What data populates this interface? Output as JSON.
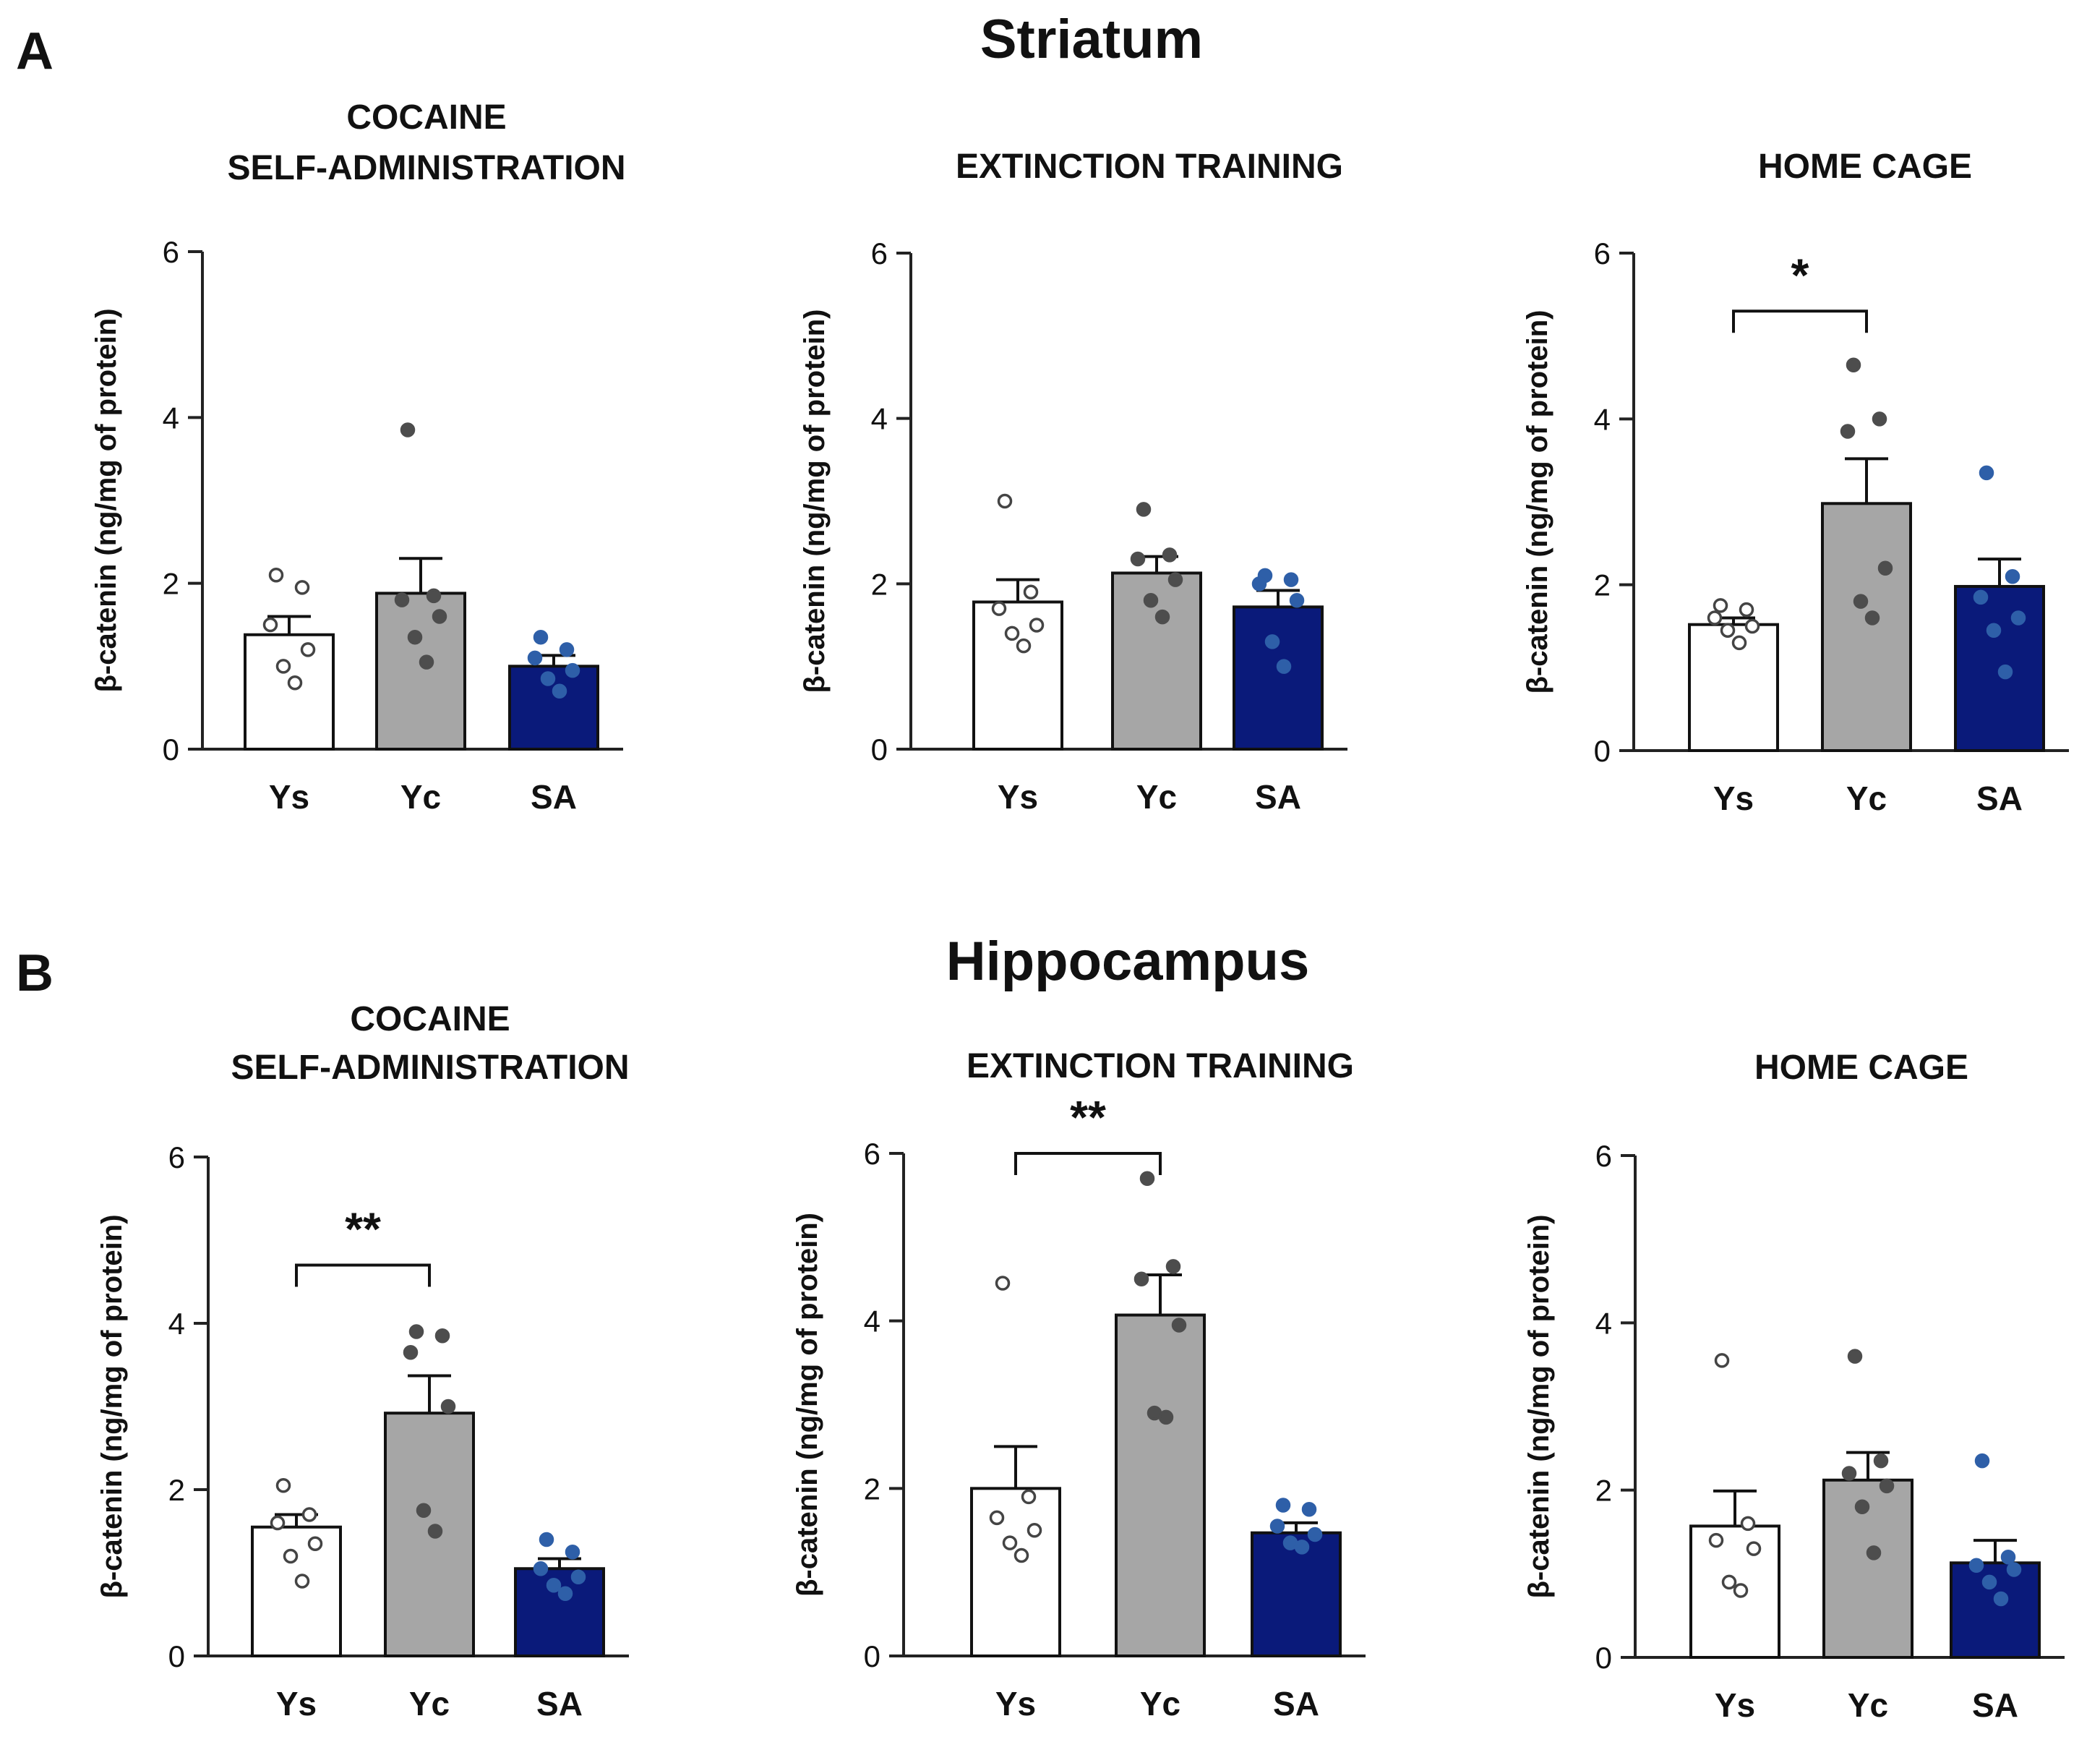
{
  "figure": {
    "panel_A": {
      "letter": "A",
      "title": "Striatum"
    },
    "panel_B": {
      "letter": "B",
      "title": "Hippocampus"
    }
  },
  "colors": {
    "Ys": "#ffffff",
    "Yc": "#a6a6a6",
    "SA": "#0a1a7a",
    "SA_dot": "#2e5fa8",
    "axis": "#222222"
  },
  "chart_data": [
    {
      "type": "bar",
      "panel": "A",
      "region": "Striatum",
      "title_lines": [
        "COCAINE",
        "SELF-ADMINISTRATION"
      ],
      "ylabel": "β-catenin (ng/mg of protein)",
      "ylim": [
        0,
        6
      ],
      "yticks": [
        "0",
        "2",
        "4",
        "6"
      ],
      "categories": [
        "Ys",
        "Yc",
        "SA"
      ],
      "values": [
        1.38,
        1.88,
        1.0
      ],
      "sem": [
        0.22,
        0.42,
        0.13
      ],
      "points": [
        [
          2.1,
          1.95,
          1.5,
          1.2,
          1.0,
          0.8
        ],
        [
          3.85,
          1.85,
          1.8,
          1.6,
          1.35,
          1.05
        ],
        [
          1.35,
          1.2,
          1.1,
          0.95,
          0.85,
          0.7
        ]
      ],
      "significance": null
    },
    {
      "type": "bar",
      "panel": "A",
      "region": "Striatum",
      "title_lines": [
        "EXTINCTION TRAINING"
      ],
      "ylabel": "β-catenin (ng/mg of protein)",
      "ylim": [
        0,
        6
      ],
      "yticks": [
        "0",
        "2",
        "4",
        "6"
      ],
      "categories": [
        "Ys",
        "Yc",
        "SA"
      ],
      "values": [
        1.78,
        2.13,
        1.72
      ],
      "sem": [
        0.27,
        0.2,
        0.2
      ],
      "points": [
        [
          3.0,
          1.9,
          1.7,
          1.5,
          1.4,
          1.25
        ],
        [
          2.9,
          2.35,
          2.3,
          2.05,
          1.8,
          1.6
        ],
        [
          2.1,
          2.05,
          2.0,
          1.8,
          1.3,
          1.0
        ]
      ],
      "significance": null
    },
    {
      "type": "bar",
      "panel": "A",
      "region": "Striatum",
      "title_lines": [
        "HOME CAGE"
      ],
      "ylabel": "β-catenin (ng/mg of protein)",
      "ylim": [
        0,
        6
      ],
      "yticks": [
        "0",
        "2",
        "4",
        "6"
      ],
      "categories": [
        "Ys",
        "Yc",
        "SA"
      ],
      "values": [
        1.52,
        2.98,
        1.98
      ],
      "sem": [
        0.08,
        0.54,
        0.33
      ],
      "points": [
        [
          1.75,
          1.7,
          1.6,
          1.5,
          1.45,
          1.3
        ],
        [
          4.65,
          4.0,
          3.85,
          2.2,
          1.8,
          1.6
        ],
        [
          3.35,
          2.1,
          1.85,
          1.6,
          1.45,
          0.95
        ]
      ],
      "significance": {
        "label": "*",
        "from": 0,
        "to": 1,
        "at": 5.3
      }
    },
    {
      "type": "bar",
      "panel": "B",
      "region": "Hippocampus",
      "title_lines": [
        "COCAINE",
        "SELF-ADMINISTRATION"
      ],
      "ylabel": "β-catenin (ng/mg of protein)",
      "ylim": [
        0,
        6
      ],
      "yticks": [
        "0",
        "2",
        "4",
        "6"
      ],
      "categories": [
        "Ys",
        "Yc",
        "SA"
      ],
      "values": [
        1.55,
        2.92,
        1.05
      ],
      "sem": [
        0.15,
        0.45,
        0.12
      ],
      "points": [
        [
          2.05,
          1.7,
          1.6,
          1.35,
          1.2,
          0.9
        ],
        [
          3.9,
          3.85,
          3.65,
          3.0,
          1.75,
          1.5
        ],
        [
          1.4,
          1.25,
          1.05,
          0.95,
          0.85,
          0.75
        ]
      ],
      "significance": {
        "label": "**",
        "from": 0,
        "to": 1,
        "at": 4.7
      }
    },
    {
      "type": "bar",
      "panel": "B",
      "region": "Hippocampus",
      "title_lines": [
        "EXTINCTION TRAINING"
      ],
      "ylabel": "β-catenin (ng/mg of protein)",
      "ylim": [
        0,
        6
      ],
      "yticks": [
        "0",
        "2",
        "4",
        "6"
      ],
      "categories": [
        "Ys",
        "Yc",
        "SA"
      ],
      "values": [
        2.0,
        4.07,
        1.47
      ],
      "sem": [
        0.5,
        0.48,
        0.12
      ],
      "points": [
        [
          4.45,
          1.9,
          1.65,
          1.5,
          1.35,
          1.2
        ],
        [
          5.7,
          4.65,
          4.5,
          3.95,
          2.9,
          2.85
        ],
        [
          1.8,
          1.75,
          1.55,
          1.45,
          1.35,
          1.3
        ]
      ],
      "significance": {
        "label": "**",
        "from": 0,
        "to": 1,
        "at": 6.0
      }
    },
    {
      "type": "bar",
      "panel": "B",
      "region": "Hippocampus",
      "title_lines": [
        "HOME CAGE"
      ],
      "ylabel": "β-catenin (ng/mg of protein)",
      "ylim": [
        0,
        6
      ],
      "yticks": [
        "0",
        "2",
        "4",
        "6"
      ],
      "categories": [
        "Ys",
        "Yc",
        "SA"
      ],
      "values": [
        1.57,
        2.12,
        1.13
      ],
      "sem": [
        0.42,
        0.33,
        0.27
      ],
      "points": [
        [
          3.55,
          1.6,
          1.4,
          1.3,
          0.9,
          0.8
        ],
        [
          3.6,
          2.35,
          2.2,
          2.05,
          1.8,
          1.25
        ],
        [
          2.35,
          1.2,
          1.1,
          1.05,
          0.9,
          0.7
        ]
      ],
      "significance": null
    }
  ]
}
